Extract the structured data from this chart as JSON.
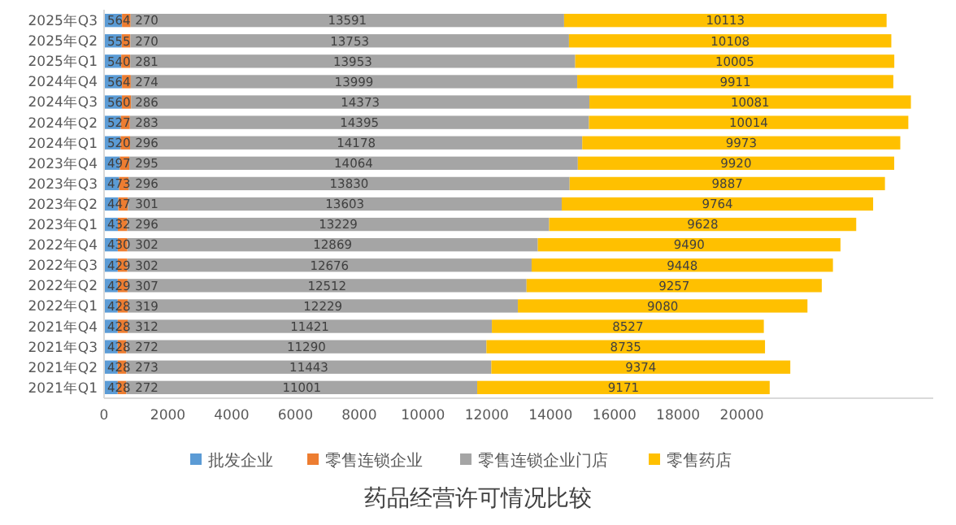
{
  "chart_data": {
    "type": "bar",
    "orientation": "horizontal",
    "stacked": true,
    "title": "药品经营许可情况比较",
    "categories": [
      "2025年Q3",
      "2025年Q2",
      "2025年Q1",
      "2024年Q4",
      "2024年Q3",
      "2024年Q2",
      "2024年Q1",
      "2023年Q4",
      "2023年Q3",
      "2023年Q2",
      "2023年Q1",
      "2022年Q4",
      "2022年Q3",
      "2022年Q2",
      "2022年Q1",
      "2021年Q4",
      "2021年Q3",
      "2021年Q2",
      "2021年Q1"
    ],
    "series": [
      {
        "name": "批发企业",
        "color": "#5b9bd5",
        "values": [
          564,
          555,
          540,
          564,
          560,
          527,
          520,
          497,
          473,
          447,
          432,
          430,
          429,
          429,
          428,
          428,
          428,
          428,
          428
        ]
      },
      {
        "name": "零售连锁企业",
        "color": "#ed7d31",
        "values": [
          270,
          270,
          281,
          274,
          286,
          283,
          296,
          295,
          296,
          301,
          296,
          302,
          302,
          307,
          319,
          312,
          272,
          273,
          272
        ]
      },
      {
        "name": "零售连锁企业门店",
        "color": "#a5a5a5",
        "values": [
          13591,
          13753,
          13953,
          13999,
          14373,
          14395,
          14178,
          14064,
          13830,
          13603,
          13229,
          12869,
          12676,
          12512,
          12229,
          11421,
          11290,
          11443,
          11001
        ]
      },
      {
        "name": "零售药店",
        "color": "#ffc000",
        "values": [
          10113,
          10108,
          10005,
          9911,
          10081,
          10014,
          9973,
          9920,
          9887,
          9764,
          9628,
          9490,
          9448,
          9257,
          9080,
          8527,
          8735,
          9374,
          9171
        ]
      }
    ],
    "xlim": [
      0,
      26000
    ],
    "xticks": [
      0,
      2000,
      4000,
      6000,
      8000,
      10000,
      12000,
      14000,
      16000,
      18000,
      20000
    ],
    "data_labels": true,
    "legend": "bottom",
    "grid": false
  }
}
